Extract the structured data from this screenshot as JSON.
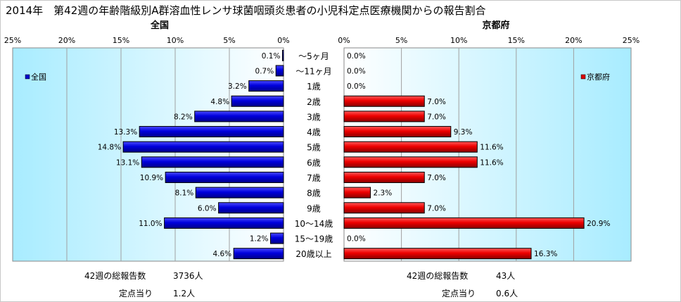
{
  "title": "2014年　第42週の年齢階級別A群溶血性レンサ球菌咽頭炎患者の小児科定点医療機関からの報告割合",
  "chart_data": {
    "type": "bar",
    "categories": [
      "～5ヶ月",
      "～11ヶ月",
      "1歳",
      "2歳",
      "3歳",
      "4歳",
      "5歳",
      "6歳",
      "7歳",
      "8歳",
      "9歳",
      "10～14歳",
      "15～19歳",
      "20歳以上"
    ],
    "xlim": [
      0,
      25
    ],
    "tick_labels": [
      "0%",
      "5%",
      "10%",
      "15%",
      "20%",
      "25%"
    ],
    "panels": [
      {
        "title": "全国",
        "legend": "全国",
        "legend_position": "top-left",
        "color": "#0000cc",
        "direction": "reversed",
        "values": [
          0.1,
          0.7,
          3.2,
          4.8,
          8.2,
          13.3,
          14.8,
          13.1,
          10.9,
          8.1,
          6.0,
          11.0,
          1.2,
          4.6
        ],
        "value_labels": [
          "0.1%",
          "0.7%",
          "3.2%",
          "4.8%",
          "8.2%",
          "13.3%",
          "14.8%",
          "13.1%",
          "10.9%",
          "8.1%",
          "6.0%",
          "11.0%",
          "1.2%",
          "4.6%"
        ]
      },
      {
        "title": "京都府",
        "legend": "京都府",
        "legend_position": "top-right",
        "color": "#dd0000",
        "direction": "normal",
        "values": [
          0.0,
          0.0,
          0.0,
          7.0,
          7.0,
          9.3,
          11.6,
          11.6,
          7.0,
          2.3,
          7.0,
          20.9,
          0.0,
          16.3
        ],
        "value_labels": [
          "0.0%",
          "0.0%",
          "0.0%",
          "7.0%",
          "7.0%",
          "9.3%",
          "11.6%",
          "11.6%",
          "7.0%",
          "2.3%",
          "7.0%",
          "20.9%",
          "0.0%",
          "16.3%"
        ]
      }
    ]
  },
  "footer": {
    "national": {
      "total_label": "42週の総報告数",
      "total_value": "3736人",
      "per_site_label": "定点当り",
      "per_site_value": "1.2人"
    },
    "kyoto": {
      "total_label": "42週の総報告数",
      "total_value": "43人",
      "per_site_label": "定点当り",
      "per_site_value": "0.6人"
    }
  }
}
